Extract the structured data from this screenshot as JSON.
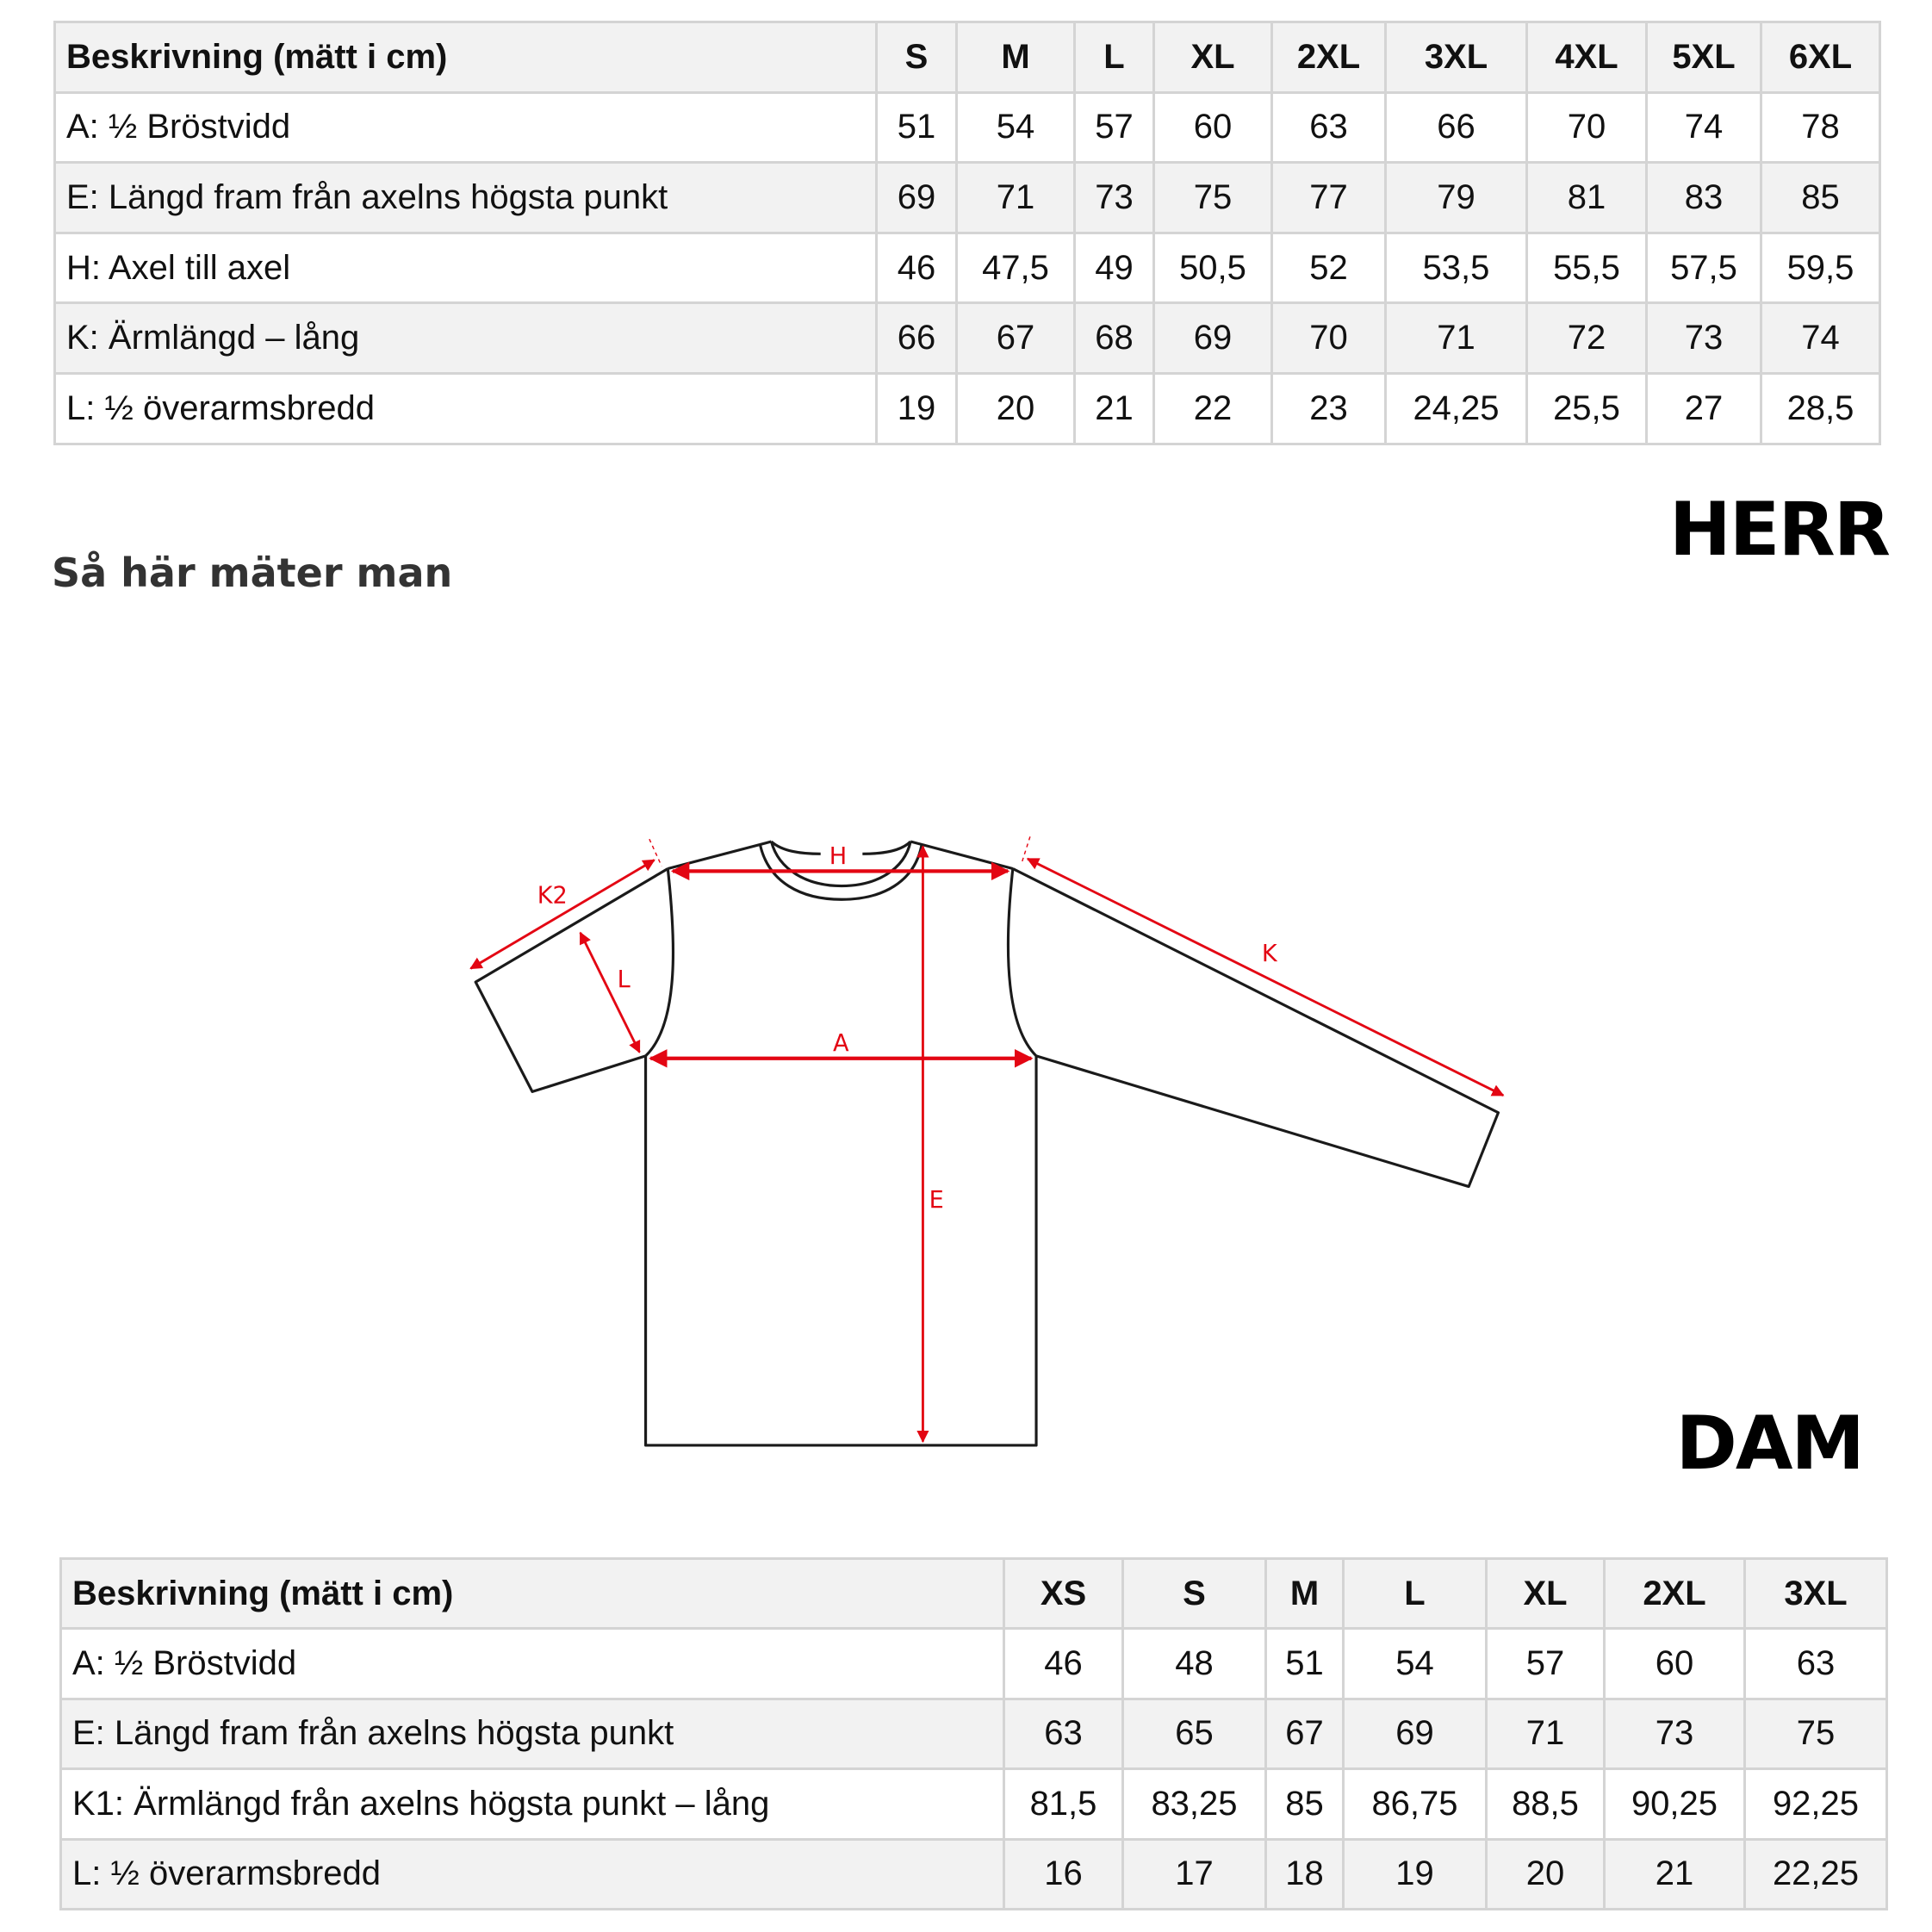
{
  "herr": {
    "title": "HERR",
    "header": [
      "Beskrivning (mätt i cm)",
      "S",
      "M",
      "L",
      "XL",
      "2XL",
      "3XL",
      "4XL",
      "5XL",
      "6XL"
    ],
    "rows": [
      [
        "A: ½ Bröstvidd",
        "51",
        "54",
        "57",
        "60",
        "63",
        "66",
        "70",
        "74",
        "78"
      ],
      [
        "E: Längd fram från axelns högsta punkt",
        "69",
        "71",
        "73",
        "75",
        "77",
        "79",
        "81",
        "83",
        "85"
      ],
      [
        "H: Axel till axel",
        "46",
        "47,5",
        "49",
        "50,5",
        "52",
        "53,5",
        "55,5",
        "57,5",
        "59,5"
      ],
      [
        "K: Ärmlängd – lång",
        "66",
        "67",
        "68",
        "69",
        "70",
        "71",
        "72",
        "73",
        "74"
      ],
      [
        "L: ½ överarmsbredd",
        "19",
        "20",
        "21",
        "22",
        "23",
        "24,25",
        "25,5",
        "27",
        "28,5"
      ]
    ]
  },
  "howto": "Så här mäter man",
  "diagram": {
    "labels": {
      "H": "H",
      "A": "A",
      "E": "E",
      "K": "K",
      "K2": "K2",
      "L": "L"
    },
    "colors": {
      "outline": "#1a1a1a",
      "measure": "#e30613"
    }
  },
  "dam": {
    "title": "DAM",
    "header": [
      "Beskrivning (mätt i cm)",
      "XS",
      "S",
      "M",
      "L",
      "XL",
      "2XL",
      "3XL"
    ],
    "rows": [
      [
        "A: ½ Bröstvidd",
        "46",
        "48",
        "51",
        "54",
        "57",
        "60",
        "63"
      ],
      [
        "E: Längd fram från axelns högsta punkt",
        "63",
        "65",
        "67",
        "69",
        "71",
        "73",
        "75"
      ],
      [
        "K1: Ärmlängd från axelns högsta punkt – lång",
        "81,5",
        "83,25",
        "85",
        "86,75",
        "88,5",
        "90,25",
        "92,25"
      ],
      [
        "L: ½ överarmsbredd",
        "16",
        "17",
        "18",
        "19",
        "20",
        "21",
        "22,25"
      ]
    ]
  }
}
